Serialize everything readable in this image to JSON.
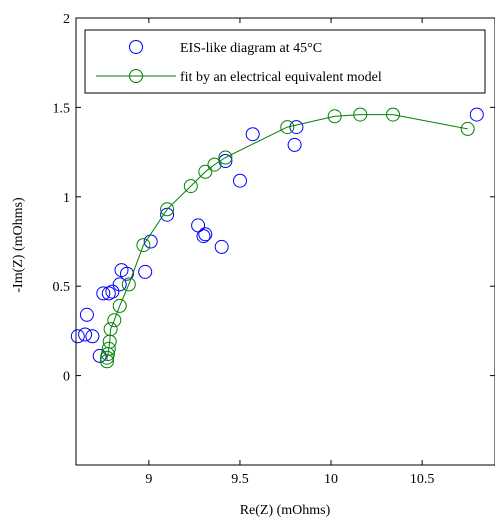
{
  "chart_data": {
    "type": "scatter",
    "title": "",
    "xlabel": "Re(Z) (mOhms)",
    "ylabel": "-Im(Z) (mOhms)",
    "xlim": [
      8.6,
      10.9
    ],
    "ylim": [
      -0.5,
      2
    ],
    "xticks": [
      9,
      9.5,
      10,
      10.5
    ],
    "xtick_labels": [
      "9",
      "9.5",
      "10",
      "10.5"
    ],
    "yticks": [
      0,
      0.5,
      1,
      1.5,
      2
    ],
    "ytick_labels": [
      "0",
      "0.5",
      "1",
      "1.5",
      "2"
    ],
    "grid": false,
    "legend_position": "top-right",
    "series": [
      {
        "name": "EIS-like diagram at 45°C",
        "color": "#0000ff",
        "marker": "circle",
        "line": false,
        "x": [
          8.61,
          8.65,
          8.66,
          8.69,
          8.73,
          8.75,
          8.78,
          8.8,
          8.84,
          8.85,
          8.88,
          8.98,
          9.01,
          9.1,
          9.27,
          9.3,
          9.31,
          9.4,
          9.42,
          9.5,
          9.57,
          9.8,
          9.81,
          10.8
        ],
        "y": [
          0.22,
          0.23,
          0.34,
          0.22,
          0.11,
          0.46,
          0.46,
          0.47,
          0.51,
          0.59,
          0.57,
          0.58,
          0.75,
          0.9,
          0.84,
          0.78,
          0.79,
          0.72,
          1.2,
          1.09,
          1.35,
          1.29,
          1.39,
          1.46
        ]
      },
      {
        "name": "fit by an electrical equivalent model",
        "color": "#008000",
        "marker": "circle",
        "line": true,
        "x": [
          8.77,
          8.77,
          8.775,
          8.78,
          8.785,
          8.79,
          8.81,
          8.84,
          8.89,
          8.97,
          9.1,
          9.23,
          9.31,
          9.36,
          9.42,
          9.76,
          10.02,
          10.16,
          10.34,
          10.75
        ],
        "y": [
          0.08,
          0.1,
          0.12,
          0.15,
          0.19,
          0.26,
          0.31,
          0.39,
          0.51,
          0.73,
          0.93,
          1.06,
          1.14,
          1.18,
          1.22,
          1.39,
          1.45,
          1.46,
          1.46,
          1.38
        ]
      }
    ]
  }
}
